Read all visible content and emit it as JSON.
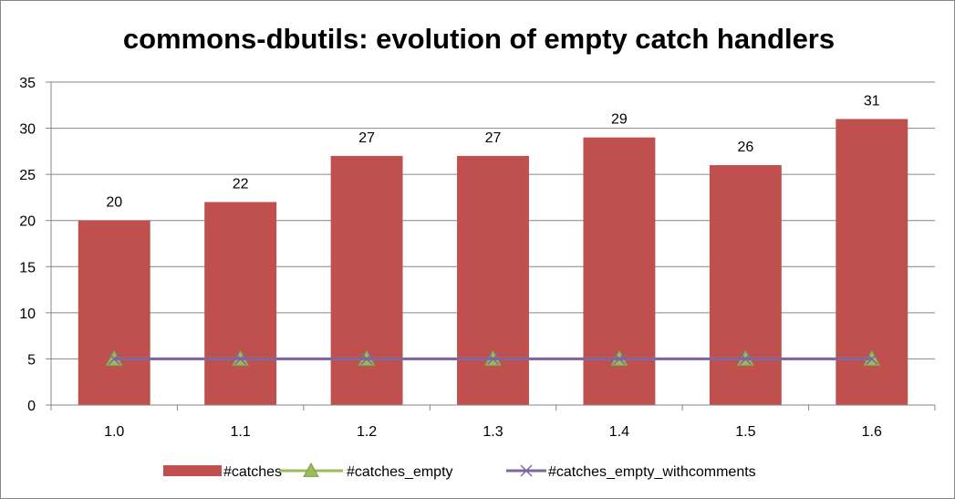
{
  "chart_data": {
    "type": "bar",
    "title": "commons-dbutils: evolution of empty catch handlers",
    "xlabel": "",
    "ylabel": "",
    "categories": [
      "1.0",
      "1.1",
      "1.2",
      "1.3",
      "1.4",
      "1.5",
      "1.6"
    ],
    "ylim": [
      0,
      35
    ],
    "yticks": [
      0,
      5,
      10,
      15,
      20,
      25,
      30,
      35
    ],
    "grid": true,
    "legend_position": "bottom",
    "series": [
      {
        "name": "#catches",
        "kind": "bar",
        "color": "#C0504D",
        "values": [
          20,
          22,
          27,
          27,
          29,
          26,
          31
        ],
        "show_labels": true
      },
      {
        "name": "#catches_empty",
        "kind": "line",
        "marker": "triangle",
        "color": "#9BBB59",
        "values": [
          5,
          5,
          5,
          5,
          5,
          5,
          5
        ]
      },
      {
        "name": "#catches_empty_withcomments",
        "kind": "line",
        "marker": "x",
        "color": "#8064A2",
        "values": [
          5,
          5,
          5,
          5,
          5,
          5,
          5
        ]
      }
    ]
  }
}
